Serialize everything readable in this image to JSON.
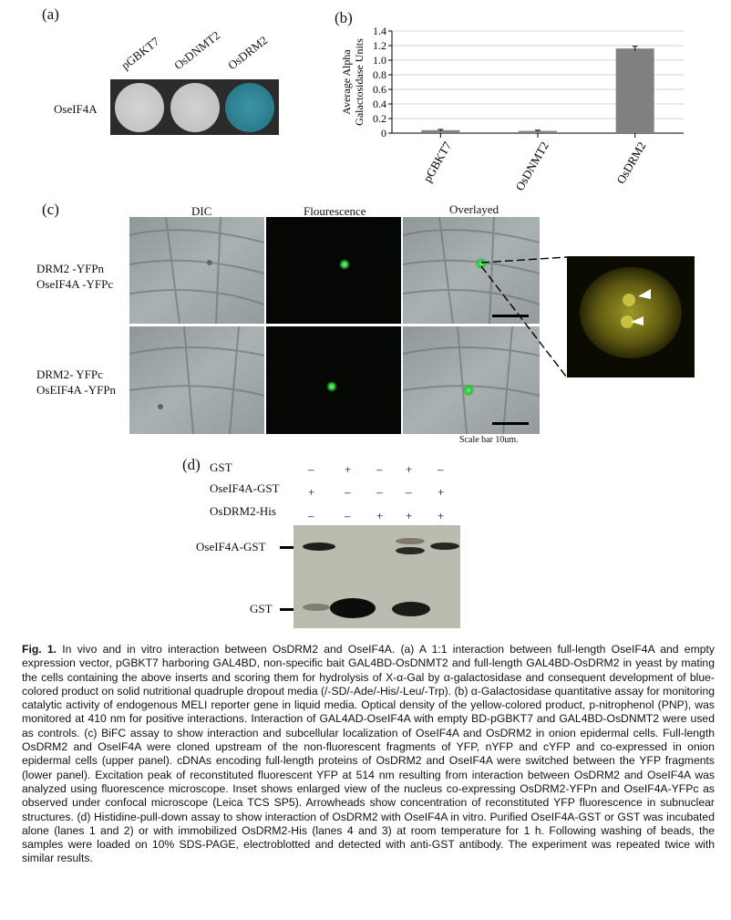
{
  "panel_a": {
    "letter": "(a)",
    "columns": [
      "pGBKT7",
      "OsDNMT2",
      "OsDRM2"
    ],
    "row_label": "OseIF4A",
    "spot_colors": [
      "#c9cbc8",
      "#c8cac7",
      "#2e8494"
    ]
  },
  "panel_b": {
    "letter": "(b)"
  },
  "chart_data": {
    "type": "bar",
    "categories": [
      "pGBKT7",
      "OsDNMT2",
      "OsDRM2"
    ],
    "values": [
      0.04,
      0.03,
      1.16
    ],
    "errors": [
      0.01,
      0.01,
      0.03
    ],
    "ylabel": "Average Alpha Galactosidase Units",
    "ylim": [
      0,
      1.4
    ],
    "yticks": [
      "0",
      "0.2",
      "0.4",
      "0.6",
      "0.8",
      "1.0",
      "1.2",
      "1.4"
    ],
    "grid": true,
    "bar_color": "#808080"
  },
  "panel_c": {
    "letter": "(c)",
    "headers": [
      "DIC",
      "Flourescence",
      "Overlayed"
    ],
    "row1_label_line1": "DRM2 -YFPn",
    "row1_label_line2": "OseIF4A -YFPc",
    "row2_label_line1": "DRM2- YFPc",
    "row2_label_line2": "OsEIF4A -YFPn",
    "scale_text": "Scale bar 10um."
  },
  "panel_d": {
    "letter": "(d)",
    "rows": [
      {
        "name": "GST",
        "signs": [
          "–",
          "+",
          "–",
          "+",
          "–"
        ]
      },
      {
        "name": "OseIF4A-GST",
        "signs": [
          "+",
          "–",
          "–",
          "–",
          "+"
        ]
      },
      {
        "name": "OsDRM2-His",
        "signs": [
          "–",
          "–",
          "+",
          "+",
          "+"
        ]
      }
    ],
    "band_label_top": "OseIF4A-GST",
    "band_label_bottom": "GST"
  },
  "caption": {
    "fig_label": "Fig. 1.",
    "text": "In vivo and in vitro interaction between OsDRM2 and OseIF4A. (a) A 1:1 interaction between full-length OseIF4A and empty expression vector, pGBKT7 harboring GAL4BD, non-specific bait GAL4BD-OsDNMT2 and full-length GAL4BD-OsDRM2 in yeast by mating the cells containing the above inserts and scoring them for hydrolysis of X-α-Gal by α-galactosidase and consequent development of blue-colored product on solid nutritional quadruple dropout media (/-SD/-Ade/-His/-Leu/-Trp). (b) α-Galactosidase quantitative assay for monitoring catalytic activity of endogenous MELI reporter gene in liquid media. Optical density of the yellow-colored product, p-nitrophenol (PNP), was monitored at 410 nm for positive interactions. Interaction of GAL4AD-OseIF4A with empty BD-pGBKT7 and GAL4BD-OsDNMT2 were used as controls. (c) BiFC assay to show interaction and subcellular localization of OseIF4A and OsDRM2 in onion epidermal cells. Full-length OsDRM2 and OseIF4A were cloned upstream of the non-fluorescent fragments of YFP, nYFP and cYFP and co-expressed in onion epidermal cells (upper panel). cDNAs encoding full-length proteins of OsDRM2 and OseIF4A were switched between the YFP fragments (lower panel). Excitation peak of reconstituted fluorescent YFP at 514 nm resulting from interaction between OsDRM2 and OseIF4A was analyzed using fluorescence microscope. Inset shows enlarged view of the nucleus co-expressing OsDRM2-YFPn and OseIF4A-YFPc as observed under confocal microscope (Leica TCS SP5). Arrowheads show concentration of reconstituted YFP fluorescence in subnuclear structures. (d) Histidine-pull-down assay to show interaction of OsDRM2 with OseIF4A in vitro. Purified OseIF4A-GST or GST was incubated alone (lanes 1 and 2) or with immobilized OsDRM2-His (lanes 4 and 3) at room temperature for 1 h. Following washing of beads, the samples were loaded on 10% SDS-PAGE, electroblotted and detected with anti-GST antibody. The experiment was repeated twice with similar results."
  }
}
